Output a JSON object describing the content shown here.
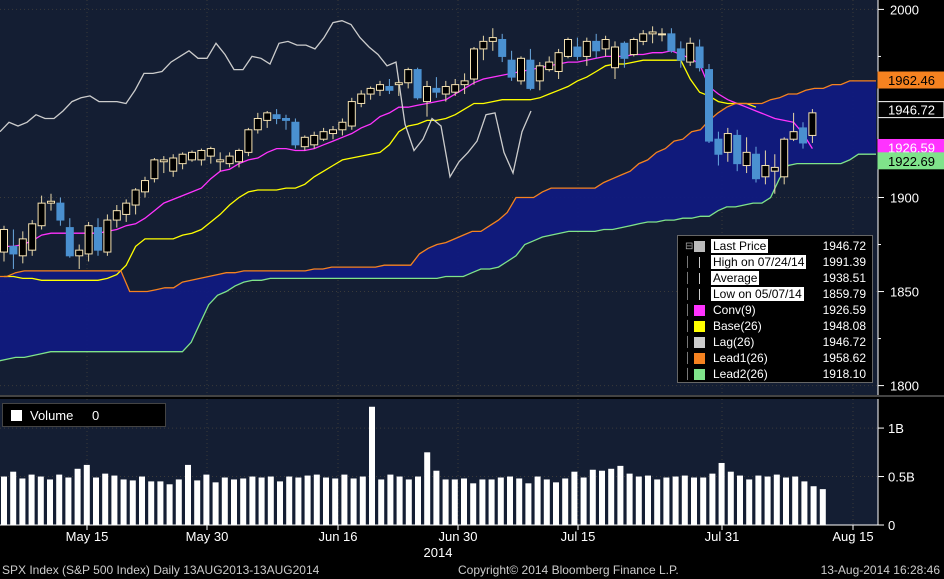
{
  "chart_data": [
    {
      "type": "candlestick",
      "title": "",
      "ylim": [
        1795,
        2005
      ],
      "y_ticks": [
        "2000",
        "1900",
        "1850",
        "1800"
      ],
      "x_labels": [
        "May 15",
        "May 30",
        "Jun 16",
        "Jun 30",
        "Jul 15",
        "Jul 31",
        "Aug 15"
      ],
      "x_year_label": "2014",
      "price_tags": [
        {
          "text": "1962.46",
          "value": 1962.46,
          "color": "#f58220"
        },
        {
          "text": "1946.72",
          "value": 1946.72,
          "color": "#ffffff"
        },
        {
          "text": "1926.59",
          "value": 1926.59,
          "color": "#ff33ff"
        },
        {
          "text": "1922.69",
          "value": 1922.69,
          "color": "#7fe38a"
        }
      ],
      "ohlc": [
        [
          1871,
          1885,
          1866,
          1883
        ],
        [
          1874,
          1883,
          1862,
          1870
        ],
        [
          1869,
          1882,
          1865,
          1878
        ],
        [
          1872,
          1888,
          1869,
          1886
        ],
        [
          1885,
          1901,
          1883,
          1897
        ],
        [
          1897,
          1902,
          1893,
          1898
        ],
        [
          1897,
          1900,
          1885,
          1888
        ],
        [
          1884,
          1889,
          1868,
          1869
        ],
        [
          1869,
          1875,
          1862,
          1872
        ],
        [
          1870,
          1887,
          1866,
          1885
        ],
        [
          1884,
          1889,
          1869,
          1872
        ],
        [
          1871,
          1891,
          1869,
          1888
        ],
        [
          1888,
          1896,
          1884,
          1893
        ],
        [
          1891,
          1899,
          1887,
          1897
        ],
        [
          1896,
          1905,
          1891,
          1904
        ],
        [
          1903,
          1911,
          1900,
          1909
        ],
        [
          1910,
          1921,
          1908,
          1920
        ],
        [
          1919,
          1922,
          1913,
          1920
        ],
        [
          1914,
          1923,
          1911,
          1921
        ],
        [
          1918,
          1924,
          1915,
          1923
        ],
        [
          1920,
          1925,
          1919,
          1924
        ],
        [
          1920,
          1926,
          1917,
          1925
        ],
        [
          1922,
          1927,
          1918,
          1926
        ],
        [
          1919,
          1924,
          1914,
          1920
        ],
        [
          1918,
          1924,
          1916,
          1922
        ],
        [
          1919,
          1926,
          1916,
          1925
        ],
        [
          1924,
          1937,
          1922,
          1936
        ],
        [
          1936,
          1945,
          1934,
          1942
        ],
        [
          1941,
          1946,
          1937,
          1945
        ],
        [
          1944,
          1947,
          1939,
          1942
        ],
        [
          1942,
          1944,
          1936,
          1941
        ],
        [
          1940,
          1942,
          1926,
          1928
        ],
        [
          1927,
          1933,
          1925,
          1932
        ],
        [
          1928,
          1935,
          1926,
          1933
        ],
        [
          1931,
          1937,
          1930,
          1935
        ],
        [
          1934,
          1938,
          1931,
          1936
        ],
        [
          1936,
          1942,
          1933,
          1940
        ],
        [
          1938,
          1953,
          1936,
          1951
        ],
        [
          1950,
          1957,
          1948,
          1955
        ],
        [
          1955,
          1959,
          1952,
          1958
        ],
        [
          1957,
          1962,
          1954,
          1960
        ],
        [
          1959,
          1963,
          1955,
          1957
        ],
        [
          1960,
          1962,
          1954,
          1961
        ],
        [
          1961,
          1969,
          1958,
          1968
        ],
        [
          1968,
          1969,
          1952,
          1953
        ],
        [
          1951,
          1962,
          1943,
          1959
        ],
        [
          1958,
          1964,
          1953,
          1956
        ],
        [
          1955,
          1962,
          1951,
          1959
        ],
        [
          1956,
          1963,
          1954,
          1960
        ],
        [
          1960,
          1966,
          1955,
          1962
        ],
        [
          1963,
          1980,
          1960,
          1979
        ],
        [
          1979,
          1986,
          1973,
          1983
        ],
        [
          1983,
          1990,
          1978,
          1985
        ],
        [
          1984,
          1987,
          1972,
          1975
        ],
        [
          1973,
          1978,
          1962,
          1964
        ],
        [
          1962,
          1975,
          1960,
          1974
        ],
        [
          1973,
          1979,
          1957,
          1958
        ],
        [
          1962,
          1972,
          1957,
          1970
        ],
        [
          1968,
          1975,
          1967,
          1972
        ],
        [
          1967,
          1979,
          1963,
          1977
        ],
        [
          1975,
          1985,
          1974,
          1984
        ],
        [
          1980,
          1985,
          1973,
          1975
        ],
        [
          1975,
          1985,
          1970,
          1983
        ],
        [
          1983,
          1987,
          1974,
          1978
        ],
        [
          1979,
          1986,
          1975,
          1984
        ],
        [
          1969,
          1983,
          1963,
          1980
        ],
        [
          1982,
          1983,
          1969,
          1974
        ],
        [
          1976,
          1985,
          1975,
          1984
        ],
        [
          1983,
          1989,
          1981,
          1987
        ],
        [
          1987,
          1991,
          1982,
          1988
        ],
        [
          1987,
          1990,
          1983,
          1987
        ],
        [
          1987,
          1990,
          1977,
          1978
        ],
        [
          1979,
          1983,
          1969,
          1973
        ],
        [
          1972,
          1985,
          1970,
          1982
        ],
        [
          1980,
          1984,
          1967,
          1969
        ],
        [
          1968,
          1971,
          1929,
          1930
        ],
        [
          1931,
          1935,
          1917,
          1923
        ],
        [
          1924,
          1937,
          1919,
          1934
        ],
        [
          1933,
          1936,
          1914,
          1918
        ],
        [
          1917,
          1932,
          1913,
          1924
        ],
        [
          1923,
          1927,
          1908,
          1910
        ],
        [
          1911,
          1925,
          1907,
          1917
        ],
        [
          1914,
          1923,
          1902,
          1916
        ],
        [
          1911,
          1932,
          1907,
          1931
        ],
        [
          1931,
          1945,
          1930,
          1935
        ],
        [
          1937,
          1940,
          1926,
          1929
        ],
        [
          1933,
          1947,
          1929,
          1945
        ]
      ],
      "series": [
        {
          "name": "Conv(9)",
          "color": "#ff33ff",
          "values": [
            1874,
            1874,
            1875,
            1877,
            1880,
            1881,
            1881,
            1881,
            1881,
            1881,
            1881,
            1882,
            1883,
            1885,
            1886,
            1889,
            1893,
            1897,
            1899,
            1901,
            1903,
            1905,
            1910,
            1914,
            1915,
            1918,
            1920,
            1921,
            1924,
            1926,
            1926,
            1925,
            1925,
            1926,
            1928,
            1930,
            1932,
            1934,
            1937,
            1939,
            1943,
            1945,
            1948,
            1948,
            1949,
            1950,
            1951,
            1952,
            1955,
            1958,
            1961,
            1963,
            1964,
            1965,
            1966,
            1967,
            1968,
            1969,
            1970,
            1971,
            1972,
            1972,
            1973,
            1974,
            1975,
            1975,
            1975,
            1976,
            1976,
            1977,
            1977,
            1978,
            1976,
            1974,
            1971,
            1959,
            1955,
            1952,
            1950,
            1948,
            1946,
            1944,
            1942,
            1941,
            1940,
            1934,
            1926
          ]
        },
        {
          "name": "Base(26)",
          "color": "#ffff00",
          "values": [
            1858,
            1858,
            1857,
            1857,
            1856,
            1856,
            1856,
            1856,
            1856,
            1856,
            1856,
            1857,
            1859,
            1864,
            1874,
            1878,
            1878,
            1878,
            1878,
            1880,
            1881,
            1883,
            1887,
            1891,
            1896,
            1900,
            1903,
            1904,
            1904,
            1904,
            1905,
            1905,
            1907,
            1911,
            1914,
            1917,
            1920,
            1921,
            1922,
            1923,
            1924,
            1928,
            1935,
            1938,
            1939,
            1941,
            1941,
            1942,
            1944,
            1947,
            1950,
            1950,
            1951,
            1952,
            1952,
            1952,
            1952,
            1953,
            1955,
            1957,
            1959,
            1962,
            1964,
            1967,
            1970,
            1971,
            1971,
            1972,
            1973,
            1973,
            1973,
            1973,
            1973,
            1963,
            1956,
            1954,
            1951,
            1950,
            1950,
            1950,
            1948
          ]
        },
        {
          "name": "Lag(26)",
          "color": "#cccccc",
          "values": [
            1935,
            1940,
            1938,
            1940,
            1944,
            1942,
            1942,
            1946,
            1951,
            1953,
            1954,
            1951,
            1951,
            1951,
            1950,
            1957,
            1966,
            1966,
            1967,
            1972,
            1975,
            1978,
            1974,
            1974,
            1982,
            1976,
            1968,
            1968,
            1975,
            1974,
            1971,
            1982,
            1983,
            1981,
            1981,
            1979,
            1985,
            1993,
            1994,
            1992,
            1985,
            1980,
            1976,
            1970,
            1972,
            1939,
            1925,
            1931,
            1942,
            1938,
            1911,
            1919,
            1924,
            1930,
            1944,
            1945,
            1924,
            1913,
            1935,
            1946
          ]
        },
        {
          "name": "Lead1(26)",
          "color": "#f58220",
          "values": [
            1858,
            1858,
            1860,
            1861,
            1861,
            1861,
            1861,
            1861,
            1861,
            1861,
            1861,
            1861,
            1861,
            1861,
            1861,
            1850,
            1850,
            1850,
            1851,
            1852,
            1852,
            1855,
            1856,
            1857,
            1858,
            1859,
            1860,
            1860,
            1861,
            1861,
            1861,
            1861,
            1861,
            1861,
            1861,
            1861,
            1862,
            1862,
            1863,
            1863,
            1863,
            1863,
            1863,
            1863,
            1864,
            1864,
            1864,
            1864,
            1870,
            1873,
            1875,
            1876,
            1878,
            1880,
            1882,
            1882,
            1885,
            1888,
            1892,
            1900,
            1900,
            1900,
            1903,
            1905,
            1905,
            1905,
            1905,
            1905,
            1905,
            1908,
            1910,
            1912,
            1914,
            1918,
            1920,
            1924,
            1926,
            1930,
            1931,
            1935,
            1936,
            1941,
            1945,
            1948,
            1950,
            1950,
            1950,
            1950,
            1952,
            1953,
            1955,
            1955,
            1957,
            1958,
            1958,
            1960,
            1960,
            1962,
            1962,
            1962,
            1962
          ]
        },
        {
          "name": "Lead2(26)",
          "color": "#7fe38a",
          "values": [
            1813,
            1814,
            1815,
            1815,
            1816,
            1817,
            1818,
            1818,
            1818,
            1818,
            1818,
            1818,
            1818,
            1818,
            1818,
            1818,
            1818,
            1818,
            1818,
            1818,
            1818,
            1818,
            1823,
            1833,
            1843,
            1848,
            1850,
            1853,
            1855,
            1856,
            1856,
            1857,
            1857,
            1857,
            1857,
            1857,
            1857,
            1857,
            1857,
            1857,
            1857,
            1857,
            1857,
            1857,
            1857,
            1857,
            1857,
            1857,
            1857,
            1857,
            1857,
            1858,
            1858,
            1858,
            1860,
            1862,
            1862,
            1863,
            1866,
            1869,
            1875,
            1877,
            1879,
            1880,
            1881,
            1882,
            1882,
            1882,
            1882,
            1883,
            1883,
            1884,
            1885,
            1886,
            1887,
            1887,
            1888,
            1888,
            1889,
            1889,
            1890,
            1890,
            1893,
            1895,
            1895,
            1896,
            1897,
            1897,
            1900,
            1910,
            1917,
            1918,
            1918,
            1918,
            1918,
            1918,
            1918,
            1920,
            1923,
            1923,
            1923
          ]
        }
      ]
    },
    {
      "type": "bar",
      "title": "",
      "ylim": [
        0,
        1.3
      ],
      "y_ticks": [
        "1B",
        "0.5B",
        "0"
      ],
      "values": [
        0.5,
        0.55,
        0.48,
        0.52,
        0.5,
        0.47,
        0.52,
        0.49,
        0.58,
        0.62,
        0.49,
        0.53,
        0.51,
        0.47,
        0.46,
        0.5,
        0.45,
        0.45,
        0.42,
        0.47,
        0.62,
        0.46,
        0.52,
        0.44,
        0.49,
        0.47,
        0.48,
        0.5,
        0.49,
        0.5,
        0.45,
        0.5,
        0.49,
        0.51,
        0.52,
        0.49,
        0.48,
        0.52,
        0.48,
        0.5,
        1.22,
        0.47,
        0.52,
        0.5,
        0.47,
        0.5,
        0.75,
        0.56,
        0.47,
        0.47,
        0.48,
        0.43,
        0.47,
        0.47,
        0.49,
        0.5,
        0.48,
        0.43,
        0.5,
        0.47,
        0.44,
        0.48,
        0.55,
        0.49,
        0.57,
        0.56,
        0.58,
        0.61,
        0.53,
        0.5,
        0.51,
        0.47,
        0.49,
        0.5,
        0.51,
        0.49,
        0.49,
        0.53,
        0.64,
        0.55,
        0.51,
        0.47,
        0.51,
        0.5,
        0.52,
        0.49,
        0.5,
        0.45,
        0.4,
        0.37
      ]
    }
  ],
  "legend": {
    "items": [
      {
        "label": "Last Price",
        "value": "1946.72",
        "color": "#bbbbbb",
        "marker": "square",
        "highlight": true
      },
      {
        "label": "High on 07/24/14",
        "value": "1991.39",
        "color": "#bbbbbb",
        "marker": "high",
        "highlight": true
      },
      {
        "label": "Average",
        "value": "1938.51",
        "color": "#bbbbbb",
        "marker": "avg",
        "highlight": true
      },
      {
        "label": "Low on 05/07/14",
        "value": "1859.79",
        "color": "#bbbbbb",
        "marker": "low",
        "highlight": true
      },
      {
        "label": "Conv(9)",
        "value": "1926.59",
        "color": "#ff33ff",
        "marker": "square",
        "highlight": false
      },
      {
        "label": "Base(26)",
        "value": "1948.08",
        "color": "#ffff00",
        "marker": "square",
        "highlight": false
      },
      {
        "label": "Lag(26)",
        "value": "1946.72",
        "color": "#cccccc",
        "marker": "square",
        "highlight": false
      },
      {
        "label": "Lead1(26)",
        "value": "1958.62",
        "color": "#f58220",
        "marker": "square",
        "highlight": false
      },
      {
        "label": "Lead2(26)",
        "value": "1918.10",
        "color": "#7fe38a",
        "marker": "square",
        "highlight": false
      }
    ]
  },
  "volume_legend": {
    "label": "Volume",
    "value": "0"
  },
  "footer": {
    "left": "SPX Index (S&P 500 Index)  Daily 13AUG2013-13AUG2014",
    "center": "Copyright© 2014 Bloomberg Finance L.P.",
    "right": "13-Aug-2014 16:28:46"
  },
  "colors": {
    "up": "#f6e3b4",
    "down": "#4a90d0",
    "cloud": "#101a80",
    "grid": "#3a3a3a",
    "axis": "#ffffff"
  }
}
